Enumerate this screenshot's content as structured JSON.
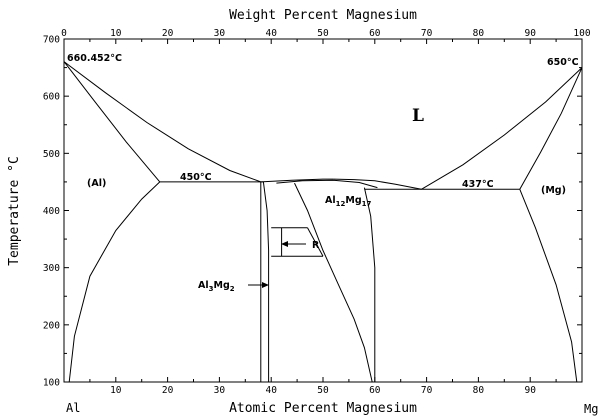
{
  "chart_data": {
    "type": "phase-diagram",
    "top_axis": {
      "title": "Weight Percent Magnesium",
      "ticks": [
        "0",
        "10",
        "20",
        "30",
        "40",
        "50",
        "60",
        "70",
        "80",
        "90",
        "100"
      ]
    },
    "bottom_axis": {
      "title": "Atomic Percent Magnesium",
      "ticks": [
        "0",
        "10",
        "20",
        "30",
        "40",
        "50",
        "60",
        "70",
        "80",
        "90",
        "100"
      ],
      "xlim": [
        0,
        100
      ]
    },
    "y_axis": {
      "title": "Temperature °C",
      "ticks": [
        "100",
        "200",
        "300",
        "400",
        "500",
        "600",
        "700"
      ],
      "ylim": [
        100,
        700
      ]
    },
    "corner_labels": {
      "left": "Al",
      "right": "Mg"
    },
    "annotations": {
      "al_melting": {
        "value": "660.452",
        "unit": "°C"
      },
      "mg_melting": {
        "value": "650",
        "unit": "°C"
      },
      "eutectic_left": {
        "value": "450",
        "unit": "°C"
      },
      "eutectic_right": {
        "value": "437",
        "unit": "°C"
      },
      "liquid": "L",
      "al_phase": "(Al)",
      "mg_phase": "(Mg)",
      "al12mg17": {
        "a": "Al",
        "a_sub": "12",
        "b": "Mg",
        "b_sub": "17"
      },
      "al3mg2": {
        "a": "Al",
        "a_sub": "3",
        "b": "Mg",
        "b_sub": "2"
      },
      "r_phase": "R"
    },
    "key_points": [
      {
        "name": "Al melting point",
        "x": 0,
        "y": 660.452
      },
      {
        "name": "Mg melting point",
        "x": 100,
        "y": 650
      },
      {
        "name": "Eutectic (Al)/Al3Mg2",
        "x": 38,
        "y": 450
      },
      {
        "name": "Al12Mg17 maximum",
        "x": 52,
        "y": 455
      },
      {
        "name": "Eutectic Al12Mg17/(Mg)",
        "x": 69,
        "y": 437
      },
      {
        "name": "(Al) max solubility",
        "x": 18.5,
        "y": 450
      },
      {
        "name": "(Mg) max solubility",
        "x": 88,
        "y": 437
      }
    ],
    "curves": [
      {
        "name": "liquidus-al-side",
        "x": [
          0,
          8,
          16,
          24,
          32,
          38
        ],
        "y": [
          660.452,
          606,
          554,
          508,
          470,
          450
        ]
      },
      {
        "name": "solidus-al-side",
        "x": [
          0,
          6,
          12,
          18.5
        ],
        "y": [
          660.452,
          590,
          520,
          450
        ]
      },
      {
        "name": "solvus-al-side",
        "x": [
          1,
          2,
          5,
          10,
          15,
          18.5
        ],
        "y": [
          100,
          180,
          285,
          365,
          420,
          450
        ]
      },
      {
        "name": "eutectic-line-450",
        "x": [
          18.5,
          38.5
        ],
        "y": [
          450,
          450
        ]
      },
      {
        "name": "al3mg2-left",
        "x": [
          38,
          38
        ],
        "y": [
          450,
          100
        ]
      },
      {
        "name": "al3mg2-right",
        "x": [
          38.5,
          39.2,
          39.5,
          39.5
        ],
        "y": [
          450,
          400,
          330,
          100
        ]
      },
      {
        "name": "liquidus-mid-1",
        "x": [
          38,
          44,
          50,
          52
        ],
        "y": [
          450,
          453,
          455,
          455
        ]
      },
      {
        "name": "liquidus-mid-2",
        "x": [
          52,
          56,
          60,
          64,
          69
        ],
        "y": [
          455,
          454,
          452,
          446,
          437
        ]
      },
      {
        "name": "al12mg17-solidus-upper",
        "x": [
          41,
          46,
          52,
          57,
          60.5
        ],
        "y": [
          448,
          452,
          453,
          449,
          440
        ]
      },
      {
        "name": "r-phase-box-top",
        "x": [
          40,
          47
        ],
        "y": [
          370,
          370
        ]
      },
      {
        "name": "r-phase-box-bottom",
        "x": [
          40,
          50
        ],
        "y": [
          320,
          320
        ]
      },
      {
        "name": "r-phase-box-left",
        "x": [
          42,
          42
        ],
        "y": [
          370,
          320
        ]
      },
      {
        "name": "r-phase-box-right",
        "x": [
          47,
          50
        ],
        "y": [
          370,
          320
        ]
      },
      {
        "name": "al12mg17-left-boundary",
        "x": [
          44.5,
          47,
          50,
          53,
          56,
          58,
          59.5
        ],
        "y": [
          448,
          400,
          330,
          270,
          210,
          160,
          100
        ]
      },
      {
        "name": "al12mg17-right-boundary",
        "x": [
          58,
          59.2,
          60,
          60
        ],
        "y": [
          440,
          390,
          300,
          100
        ]
      },
      {
        "name": "eutectic-line-437",
        "x": [
          58,
          88
        ],
        "y": [
          437,
          437
        ]
      },
      {
        "name": "liquidus-mg-side",
        "x": [
          69,
          77,
          85,
          93,
          100
        ],
        "y": [
          437,
          480,
          532,
          590,
          650
        ]
      },
      {
        "name": "solidus-mg-side",
        "x": [
          88,
          92,
          96,
          100
        ],
        "y": [
          437,
          502,
          570,
          650
        ]
      },
      {
        "name": "solvus-mg-side",
        "x": [
          88,
          91,
          95,
          98,
          99
        ],
        "y": [
          437,
          370,
          270,
          170,
          100
        ]
      }
    ]
  }
}
